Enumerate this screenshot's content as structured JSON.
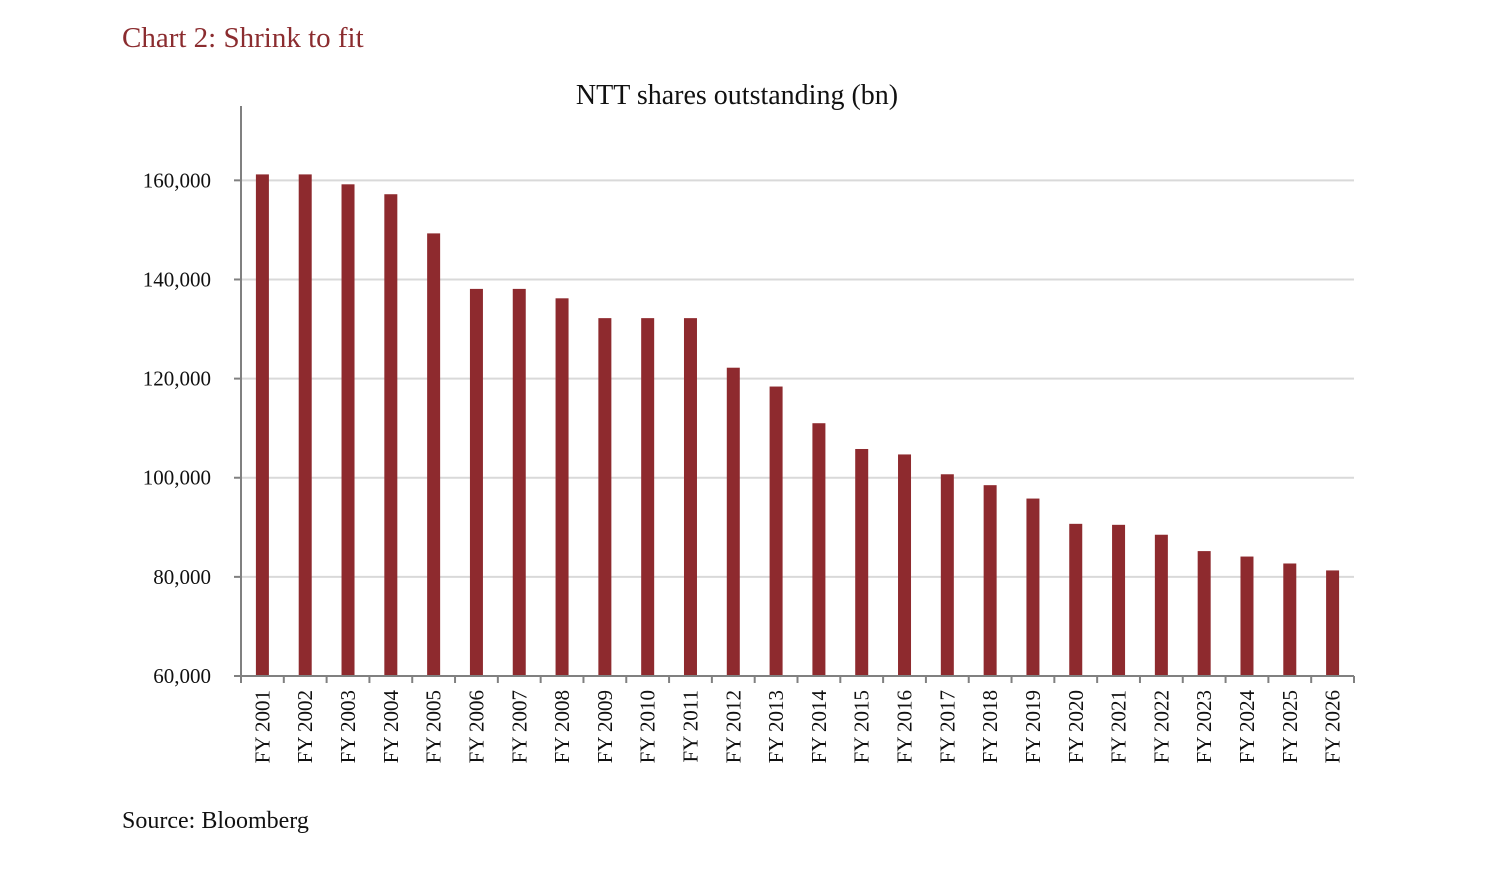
{
  "heading": "Chart 2: Shrink to fit",
  "source": "Source: Bloomberg",
  "colors": {
    "heading": "#8b2c2f",
    "bar": "#8e2a2e",
    "grid": "#d9d9d9",
    "axis": "#808080"
  },
  "chart_data": {
    "type": "bar",
    "title": "NTT shares outstanding (bn)",
    "xlabel": "",
    "ylabel": "",
    "ylim": [
      60000,
      175000
    ],
    "yticks": [
      60000,
      80000,
      100000,
      120000,
      140000,
      160000
    ],
    "ytick_labels": [
      "60,000",
      "80,000",
      "100,000",
      "120,000",
      "140,000",
      "160,000"
    ],
    "grid": "horizontal",
    "legend": "none",
    "categories": [
      "FY 2001",
      "FY 2002",
      "FY 2003",
      "FY 2004",
      "FY 2005",
      "FY 2006",
      "FY 2007",
      "FY 2008",
      "FY 2009",
      "FY 2010",
      "FY 2011",
      "FY 2012",
      "FY 2013",
      "FY 2014",
      "FY 2015",
      "FY 2016",
      "FY 2017",
      "FY 2018",
      "FY 2019",
      "FY 2020",
      "FY 2021",
      "FY 2022",
      "FY 2023",
      "FY 2024",
      "FY 2025",
      "FY 2026"
    ],
    "values": [
      161200,
      161200,
      159200,
      157200,
      149300,
      138100,
      138100,
      136200,
      132200,
      132200,
      132200,
      122200,
      118400,
      111000,
      105800,
      104700,
      100700,
      98500,
      95800,
      90700,
      90500,
      88500,
      85200,
      84100,
      82700,
      81300
    ]
  }
}
